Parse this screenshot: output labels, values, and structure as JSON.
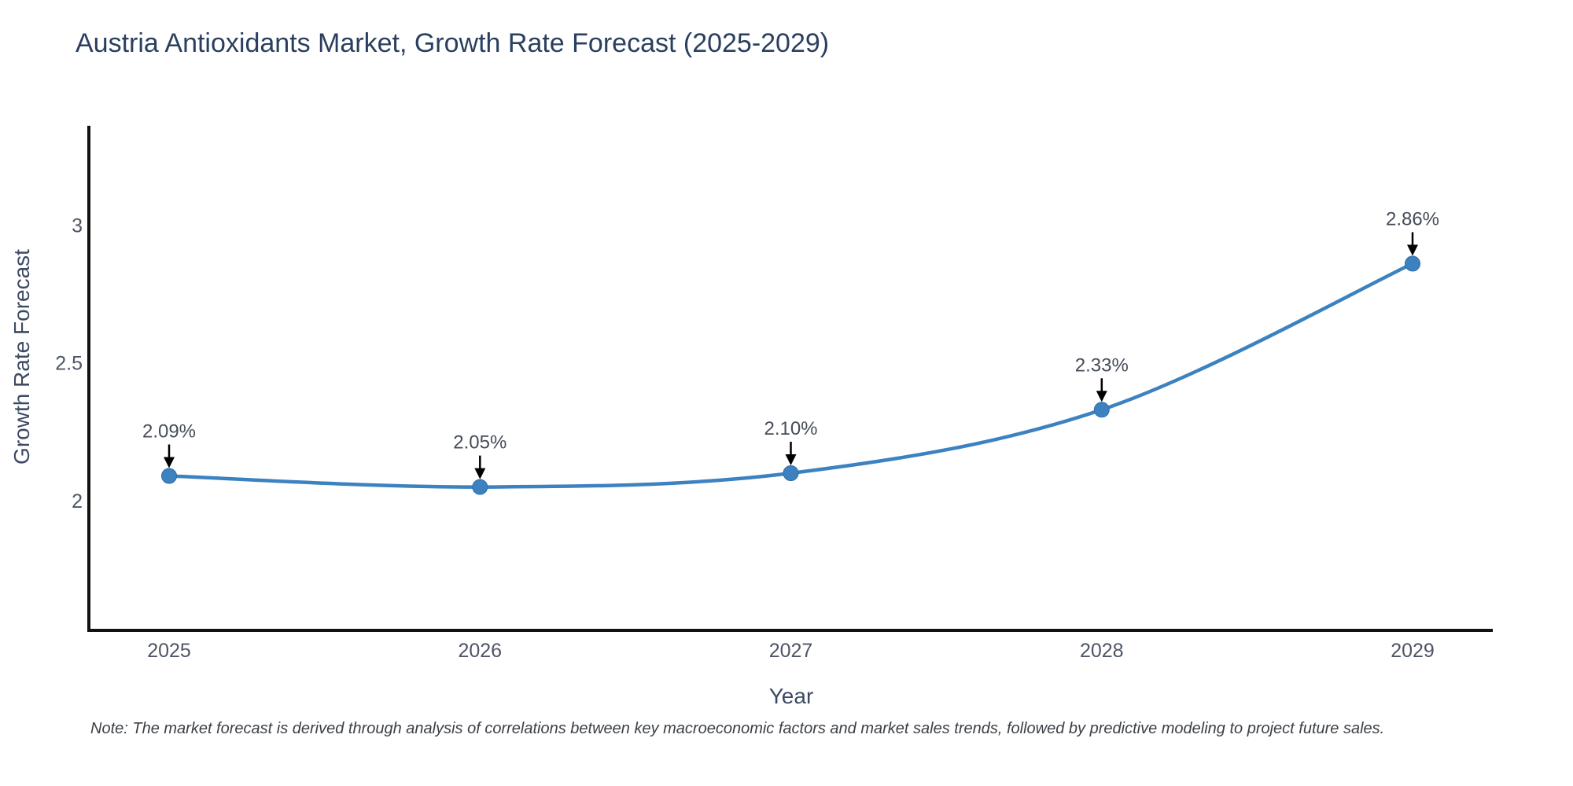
{
  "page": {
    "background_color": "#ffffff"
  },
  "title": {
    "text": "Austria Antioxidants Market, Growth Rate Forecast (2025-2029)",
    "color": "#2a3f5f"
  },
  "note": {
    "text": "Note: The market forecast is derived through analysis of correlations between key macroeconomic factors and market sales trends, followed by predictive modeling to project future sales."
  },
  "chart_data": {
    "type": "line",
    "title": "Austria Antioxidants Market, Growth Rate Forecast (2025-2029)",
    "xlabel": "Year",
    "ylabel": "Growth Rate Forecast",
    "x": [
      2025,
      2026,
      2027,
      2028,
      2029
    ],
    "xtick_labels": [
      "2025",
      "2026",
      "2027",
      "2028",
      "2029"
    ],
    "series": [
      {
        "name": "Growth Rate Forecast",
        "values": [
          2.09,
          2.05,
          2.1,
          2.33,
          2.86
        ]
      }
    ],
    "point_labels": [
      "2.09%",
      "2.05%",
      "2.10%",
      "2.33%",
      "2.86%"
    ],
    "yticks": [
      2,
      2.5,
      3
    ],
    "ytick_labels": [
      "2",
      "2.5",
      "3"
    ],
    "ylim": [
      1.53,
      3.36
    ],
    "grid": false,
    "legend_position": "none",
    "line_shape": "spline",
    "line_color": "#3d82c0",
    "marker_color": "#3d82c0",
    "marker_edge_color": "#2e6da4",
    "axis_line_color": "#111111",
    "tick_label_color": "#4d5566",
    "annotation_text_color": "#454d59",
    "annotation_arrow_color": "#000000"
  }
}
